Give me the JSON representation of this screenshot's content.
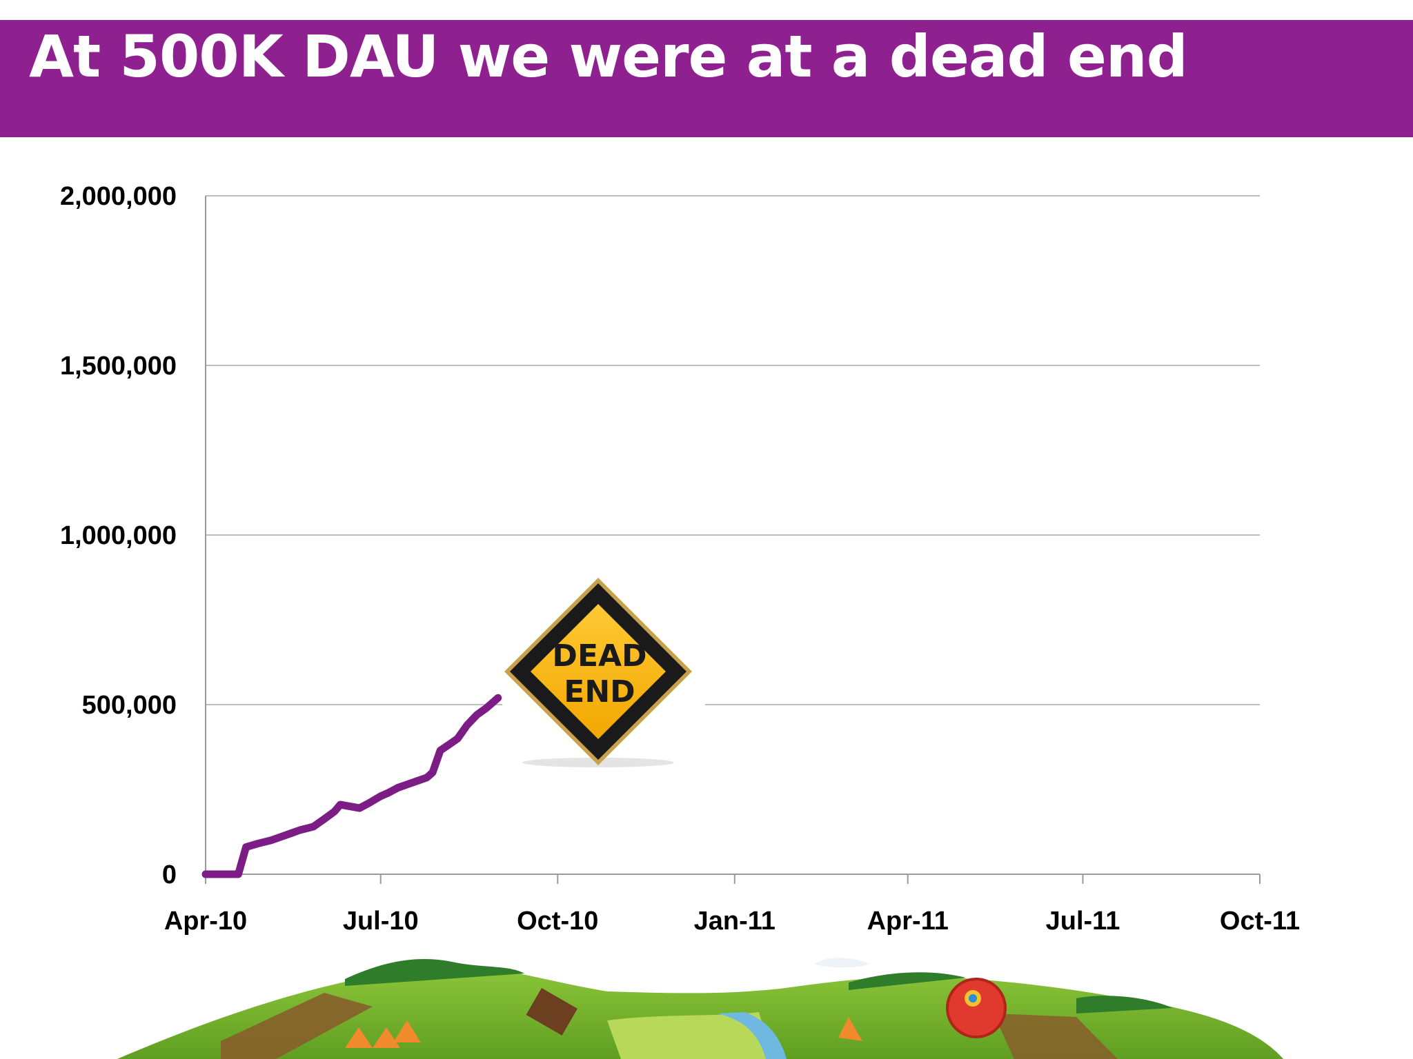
{
  "slide": {
    "title": "At 500K DAU we were at a dead end"
  },
  "colors": {
    "title_bar": "#8e2090",
    "title_text": "#ffffff",
    "series_line": "#7b1d84",
    "grid": "#bdbdbd",
    "sign_yellow": "#f7b614",
    "sign_border": "#1a1a1a"
  },
  "annotation": {
    "sign_line1": "DEAD",
    "sign_line2": "END"
  },
  "chart_data": {
    "type": "line",
    "title": "",
    "xlabel": "",
    "ylabel": "",
    "ylim": [
      0,
      2000000
    ],
    "yticks": [
      0,
      500000,
      1000000,
      1500000,
      2000000
    ],
    "ytick_labels": [
      "0",
      "500,000",
      "1,000,000",
      "1,500,000",
      "2,000,000"
    ],
    "xlim": [
      "2010-04-01",
      "2011-10-01"
    ],
    "xticks": [
      "2010-04-01",
      "2010-07-01",
      "2010-10-01",
      "2011-01-01",
      "2011-04-01",
      "2011-07-01",
      "2011-10-01"
    ],
    "xtick_labels": [
      "Apr-10",
      "Jul-10",
      "Oct-10",
      "Jan-11",
      "Apr-11",
      "Jul-11",
      "Oct-11"
    ],
    "grid": true,
    "legend": "none",
    "series": [
      {
        "x": [
          "2010-04-01",
          "2010-04-10",
          "2010-04-18",
          "2010-04-22",
          "2010-04-28",
          "2010-05-05",
          "2010-05-10",
          "2010-05-15",
          "2010-05-20",
          "2010-05-27",
          "2010-06-01",
          "2010-06-07",
          "2010-06-10",
          "2010-06-15",
          "2010-06-20",
          "2010-06-25",
          "2010-07-01",
          "2010-07-05",
          "2010-07-10",
          "2010-07-15",
          "2010-07-20",
          "2010-07-25",
          "2010-07-28",
          "2010-08-01",
          "2010-08-05",
          "2010-08-10",
          "2010-08-15",
          "2010-08-20",
          "2010-08-25",
          "2010-08-31"
        ],
        "values": [
          0,
          0,
          0,
          80000,
          90000,
          100000,
          110000,
          120000,
          130000,
          140000,
          160000,
          185000,
          205000,
          200000,
          195000,
          210000,
          230000,
          240000,
          255000,
          265000,
          275000,
          285000,
          300000,
          365000,
          380000,
          400000,
          440000,
          470000,
          490000,
          520000
        ]
      }
    ]
  }
}
